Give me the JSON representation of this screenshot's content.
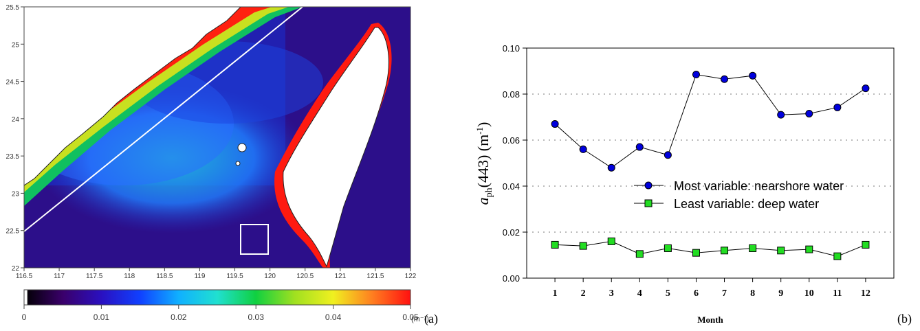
{
  "map": {
    "lon_ticks": [
      "116.5",
      "117",
      "117.5",
      "118",
      "118.5",
      "119",
      "119.5",
      "120",
      "120.5",
      "121",
      "121.5",
      "122"
    ],
    "lat_ticks": [
      "25.5",
      "25",
      "24.5",
      "24",
      "23.5",
      "23",
      "22.5",
      "22"
    ],
    "colorbar": {
      "ticks": [
        "0",
        "0.01",
        "0.02",
        "0.03",
        "0.04",
        "0.05"
      ],
      "unit": "(m⁻¹)",
      "colors": [
        "#000000",
        "#3a006a",
        "#2a10c0",
        "#1040ff",
        "#10b0ff",
        "#20e0d0",
        "#10d040",
        "#a0e020",
        "#f0f020",
        "#ff8020",
        "#ff1010"
      ]
    },
    "panel_label": "(a)"
  },
  "chart_data": {
    "type": "line",
    "x": [
      1,
      2,
      3,
      4,
      5,
      6,
      7,
      8,
      9,
      10,
      11,
      12
    ],
    "categories": [
      "1",
      "2",
      "3",
      "4",
      "5",
      "6",
      "7",
      "8",
      "9",
      "10",
      "11",
      "12"
    ],
    "series": [
      {
        "name": "Most variable: nearshore water",
        "values": [
          0.067,
          0.056,
          0.048,
          0.057,
          0.0535,
          0.0885,
          0.0865,
          0.088,
          0.071,
          0.0715,
          0.0742,
          0.0825
        ],
        "color": "#0000dd",
        "marker": "circle"
      },
      {
        "name": "Least variable: deep water",
        "values": [
          0.0145,
          0.014,
          0.016,
          0.0105,
          0.013,
          0.011,
          0.012,
          0.013,
          0.012,
          0.0125,
          0.0095,
          0.0145
        ],
        "color": "#22dd22",
        "marker": "square"
      }
    ],
    "yticks": [
      "0.00",
      "0.02",
      "0.04",
      "0.06",
      "0.08",
      "0.10"
    ],
    "ylim": [
      0,
      0.1
    ],
    "grid": true,
    "xlabel": "Month",
    "ylabel_main": "a",
    "ylabel_sub": "ph",
    "ylabel_rest": "(443) (m",
    "ylabel_sup": "-1",
    "ylabel_close": ")",
    "legend_position": "center-right",
    "panel_label": "(b)"
  }
}
